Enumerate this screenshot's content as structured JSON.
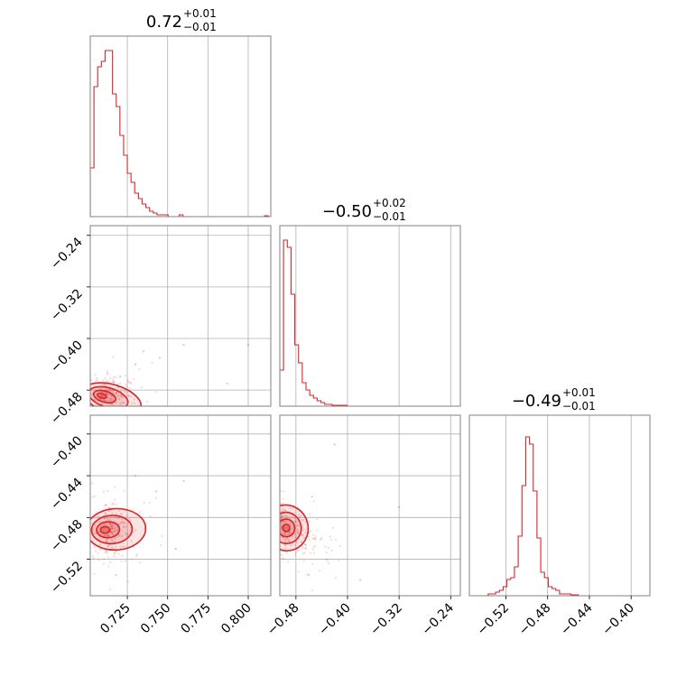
{
  "chart_data": {
    "type": "corner",
    "color": "#d62728",
    "params": [
      {
        "range": [
          0.702,
          0.814
        ],
        "ticks": [
          "0.725",
          "0.750",
          "0.775",
          "0.800"
        ],
        "tick_values": [
          0.725,
          0.75,
          0.775,
          0.8
        ]
      },
      {
        "range": [
          -0.505,
          -0.225
        ],
        "ticks": [
          "−0.48",
          "−0.40",
          "−0.32",
          "−0.24"
        ],
        "tick_values": [
          -0.48,
          -0.4,
          -0.32,
          -0.24
        ]
      },
      {
        "range": [
          -0.555,
          -0.382
        ],
        "ticks": [
          "−0.52",
          "−0.48",
          "−0.44",
          "−0.40"
        ],
        "tick_values": [
          -0.52,
          -0.48,
          -0.44,
          -0.4
        ]
      }
    ],
    "titles": [
      {
        "value": "0.72",
        "plus": "+0.01",
        "minus": "−0.01"
      },
      {
        "value": "−0.50",
        "plus": "+0.02",
        "minus": "−0.01"
      },
      {
        "value": "−0.49",
        "plus": "+0.01",
        "minus": "−0.01"
      }
    ],
    "histograms": [
      {
        "edges_start": 0.702,
        "bin_width": 0.0023,
        "counts": [
          0.27,
          0.72,
          0.83,
          0.86,
          0.92,
          0.92,
          0.68,
          0.61,
          0.45,
          0.34,
          0.24,
          0.19,
          0.13,
          0.1,
          0.07,
          0.05,
          0.03,
          0.02,
          0.01,
          0.01,
          0.01,
          0,
          0,
          0,
          0.01,
          0,
          0,
          0,
          0,
          0,
          0,
          0,
          0,
          0,
          0,
          0,
          0,
          0,
          0,
          0,
          0,
          0,
          0,
          0,
          0,
          0,
          0,
          0.005
        ]
      },
      {
        "edges_start": -0.505,
        "bin_width": 0.0058,
        "counts": [
          0.2,
          0.92,
          0.88,
          0.62,
          0.34,
          0.24,
          0.13,
          0.09,
          0.06,
          0.045,
          0.03,
          0.02,
          0.01,
          0.01,
          0.005,
          0.005,
          0.005,
          0.005,
          0,
          0,
          0,
          0,
          0,
          0,
          0,
          0,
          0,
          0,
          0,
          0,
          0,
          0,
          0,
          0,
          0,
          0,
          0,
          0,
          0,
          0,
          0,
          0,
          0,
          0,
          0,
          0,
          0,
          0
        ]
      },
      {
        "edges_start": -0.555,
        "bin_width": 0.0036,
        "counts": [
          0,
          0,
          0,
          0,
          0,
          0.01,
          0.01,
          0.02,
          0.03,
          0.05,
          0.09,
          0.1,
          0.16,
          0.33,
          0.61,
          0.88,
          0.84,
          0.58,
          0.32,
          0.13,
          0.1,
          0.05,
          0.04,
          0.03,
          0.01,
          0.01,
          0.01,
          0.005,
          0.005,
          0,
          0,
          0,
          0,
          0,
          0,
          0,
          0,
          0,
          0,
          0,
          0,
          0,
          0,
          0,
          0,
          0,
          0,
          0
        ]
      }
    ],
    "pairs": [
      {
        "row": 1,
        "col": 0,
        "center": [
          0.708,
          -0.488
        ],
        "sigma": [
          0.006,
          0.01
        ],
        "rho": 0.55,
        "scatter": [
          [
            0.745,
            -0.43
          ],
          [
            0.76,
            -0.41
          ],
          [
            0.8,
            -0.41
          ],
          [
            0.735,
            -0.42
          ],
          [
            0.73,
            -0.44
          ],
          [
            0.787,
            -0.47
          ]
        ]
      },
      {
        "row": 2,
        "col": 0,
        "center": [
          0.71,
          -0.492
        ],
        "sigma": [
          0.006,
          0.009
        ],
        "rho": -0.1,
        "scatter": [
          [
            0.73,
            -0.44
          ],
          [
            0.76,
            -0.445
          ],
          [
            0.743,
            -0.455
          ],
          [
            0.718,
            -0.535
          ],
          [
            0.755,
            -0.51
          ],
          [
            0.815,
            -0.41
          ]
        ]
      },
      {
        "row": 2,
        "col": 1,
        "center": [
          -0.495,
          -0.49
        ],
        "sigma": [
          0.011,
          0.01
        ],
        "rho": -0.55,
        "scatter": [
          [
            -0.42,
            -0.41
          ],
          [
            -0.455,
            -0.46
          ],
          [
            -0.44,
            -0.5
          ],
          [
            -0.38,
            -0.54
          ],
          [
            -0.32,
            -0.47
          ],
          [
            -0.46,
            -0.535
          ]
        ]
      }
    ]
  }
}
